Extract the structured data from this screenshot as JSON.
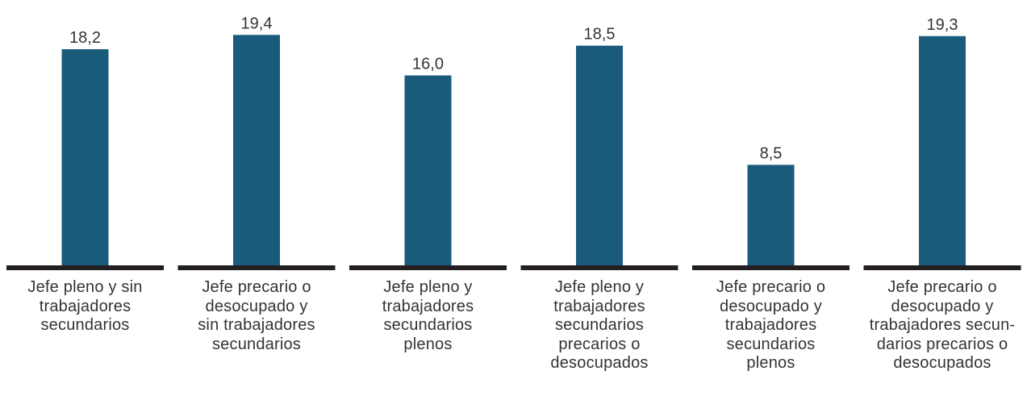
{
  "chart_data": {
    "type": "bar",
    "categories": [
      [
        "Jefe pleno y sin",
        "trabajadores",
        "secundarios"
      ],
      [
        "Jefe precario o",
        "desocupado y",
        "sin trabajadores",
        "secundarios"
      ],
      [
        "Jefe pleno y",
        "trabajadores",
        "secundarios",
        "plenos"
      ],
      [
        "Jefe pleno y",
        "trabajadores",
        "secundarios",
        "precarios o",
        "desocupados"
      ],
      [
        "Jefe precario o",
        "desocupado y",
        "trabajadores",
        "secundarios",
        "plenos"
      ],
      [
        "Jefe precario o",
        "desocupado y",
        "trabajadores secun-",
        "darios precarios o",
        "desocupados"
      ]
    ],
    "values": [
      18.2,
      19.4,
      16.0,
      18.5,
      8.5,
      19.3
    ],
    "value_labels": [
      "18,2",
      "19,4",
      "16,0",
      "18,5",
      "8,5",
      "19,3"
    ],
    "ylim": [
      0,
      20.3
    ],
    "bar_color": "#1a5b7c",
    "baseline_color": "#231f20",
    "label_color": "#333333",
    "grid": false,
    "legend": "none"
  }
}
